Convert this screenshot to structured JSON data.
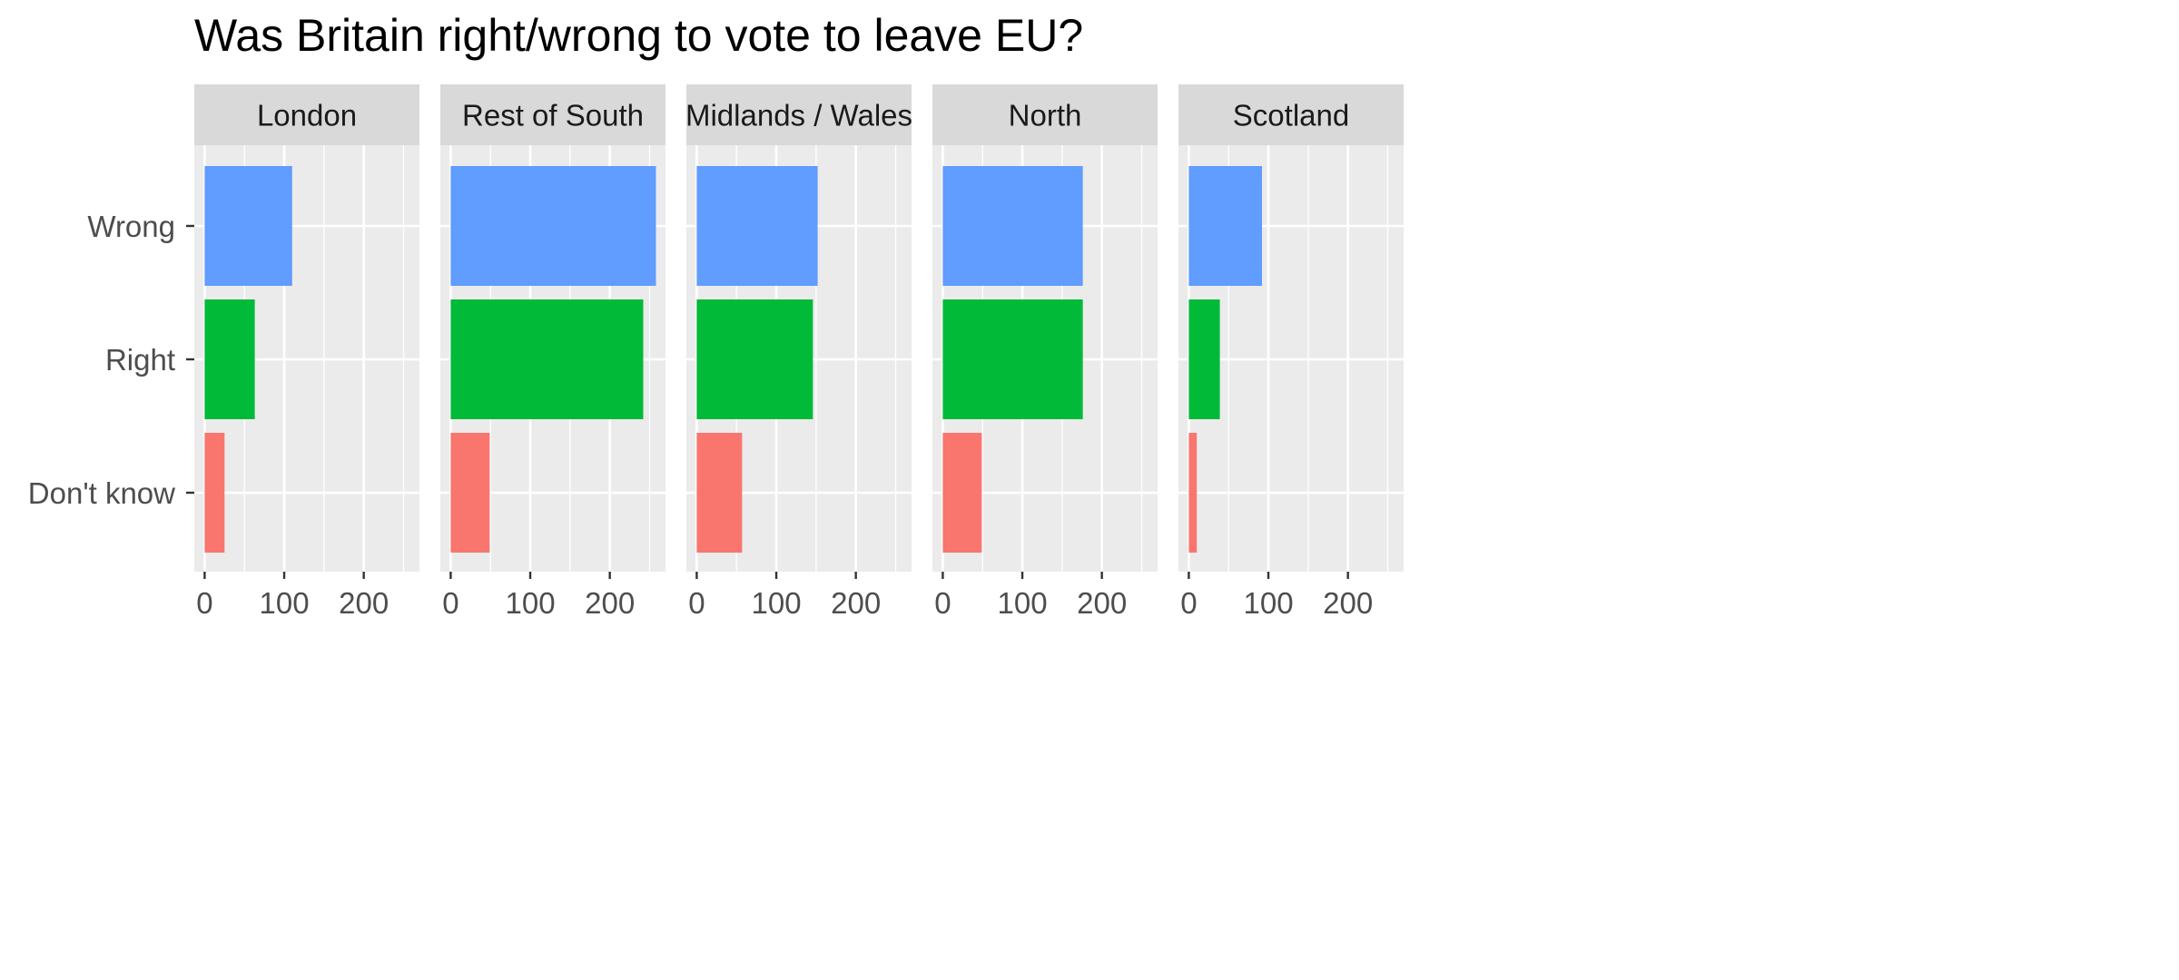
{
  "chart_data": {
    "type": "bar",
    "orientation": "horizontal",
    "faceted": true,
    "title": "Was Britain right/wrong to vote to leave EU?",
    "xlabel": "",
    "ylabel": "",
    "categories": [
      "Don't know",
      "Right",
      "Wrong"
    ],
    "category_colors": {
      "Don't know": "#F8766D",
      "Right": "#00BA38",
      "Wrong": "#619CFF"
    },
    "xlim": [
      -13,
      270
    ],
    "x_ticks": [
      0,
      100,
      200
    ],
    "grid": true,
    "legend": "none",
    "panel_background": "#EBEBEB",
    "strip_background": "#D9D9D9",
    "facets": [
      {
        "name": "London",
        "values": {
          "Don't know": 25,
          "Right": 63,
          "Wrong": 110
        }
      },
      {
        "name": "Rest of South",
        "values": {
          "Don't know": 49,
          "Right": 242,
          "Wrong": 258
        }
      },
      {
        "name": "Midlands / Wales",
        "values": {
          "Don't know": 57,
          "Right": 146,
          "Wrong": 152
        }
      },
      {
        "name": "North",
        "values": {
          "Don't know": 49,
          "Right": 176,
          "Wrong": 176
        }
      },
      {
        "name": "Scotland",
        "values": {
          "Don't know": 10,
          "Right": 39,
          "Wrong": 92
        }
      }
    ]
  }
}
